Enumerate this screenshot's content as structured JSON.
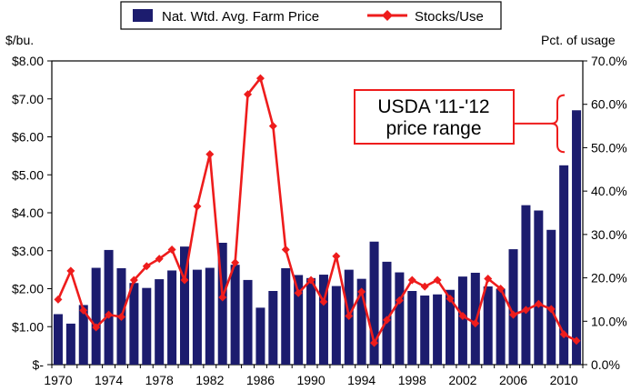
{
  "chart_data": {
    "type": "bar+line",
    "title": "",
    "years": [
      1970,
      1971,
      1972,
      1973,
      1974,
      1975,
      1976,
      1977,
      1978,
      1979,
      1980,
      1981,
      1982,
      1983,
      1984,
      1985,
      1986,
      1987,
      1988,
      1989,
      1990,
      1991,
      1992,
      1993,
      1994,
      1995,
      1996,
      1997,
      1998,
      1999,
      2000,
      2001,
      2002,
      2003,
      2004,
      2005,
      2006,
      2007,
      2008,
      2009,
      2010,
      2011
    ],
    "x_tick_labels": [
      "1970",
      "1974",
      "1978",
      "1982",
      "1986",
      "1990",
      "1994",
      "1998",
      "2002",
      "2006",
      "2010"
    ],
    "series": [
      {
        "name": "Nat. Wtd. Avg. Farm Price",
        "kind": "bar",
        "axis": "left",
        "color": "#1c1c6e",
        "values": [
          1.33,
          1.08,
          1.57,
          2.55,
          3.02,
          2.54,
          2.15,
          2.02,
          2.25,
          2.48,
          3.11,
          2.5,
          2.55,
          3.21,
          2.63,
          2.23,
          1.5,
          1.94,
          2.54,
          2.36,
          2.28,
          2.37,
          2.07,
          2.5,
          2.26,
          3.24,
          2.71,
          2.43,
          1.94,
          1.82,
          1.85,
          1.97,
          2.32,
          2.42,
          2.06,
          2.0,
          3.04,
          4.2,
          4.06,
          3.55,
          5.25,
          6.7
        ]
      },
      {
        "name": "Stocks/Use",
        "kind": "line",
        "axis": "right",
        "color": "#ee1c1c",
        "values": [
          15.0,
          21.6,
          12.5,
          8.6,
          11.5,
          11.0,
          19.5,
          22.7,
          24.4,
          26.5,
          19.5,
          36.5,
          48.5,
          15.5,
          23.5,
          62.3,
          66.0,
          55.0,
          26.5,
          16.5,
          19.5,
          14.5,
          25.0,
          11.2,
          16.8,
          5.0,
          10.3,
          14.8,
          19.5,
          18.0,
          19.5,
          15.2,
          11.2,
          9.5,
          19.8,
          17.5,
          11.5,
          12.6,
          14.0,
          12.8,
          7.0,
          5.5
        ]
      }
    ],
    "y_left": {
      "label": "$/bu.",
      "min": 0,
      "max": 8,
      "step": 1,
      "tick_labels": [
        "$-",
        "$1.00",
        "$2.00",
        "$3.00",
        "$4.00",
        "$5.00",
        "$6.00",
        "$7.00",
        "$8.00"
      ]
    },
    "y_right": {
      "label": "Pct. of usage",
      "min": 0,
      "max": 70,
      "step": 10,
      "tick_labels": [
        "0.0%",
        "10.0%",
        "20.0%",
        "30.0%",
        "40.0%",
        "50.0%",
        "60.0%",
        "70.0%"
      ]
    },
    "legend": {
      "position": "top",
      "items": [
        "Nat. Wtd. Avg. Farm Price",
        "Stocks/Use"
      ]
    },
    "annotation": {
      "lines": [
        "USDA '11-'12",
        "price range"
      ],
      "range_low": 5.6,
      "range_high": 7.1,
      "border_color": "#ee1c1c"
    },
    "grid": false
  }
}
